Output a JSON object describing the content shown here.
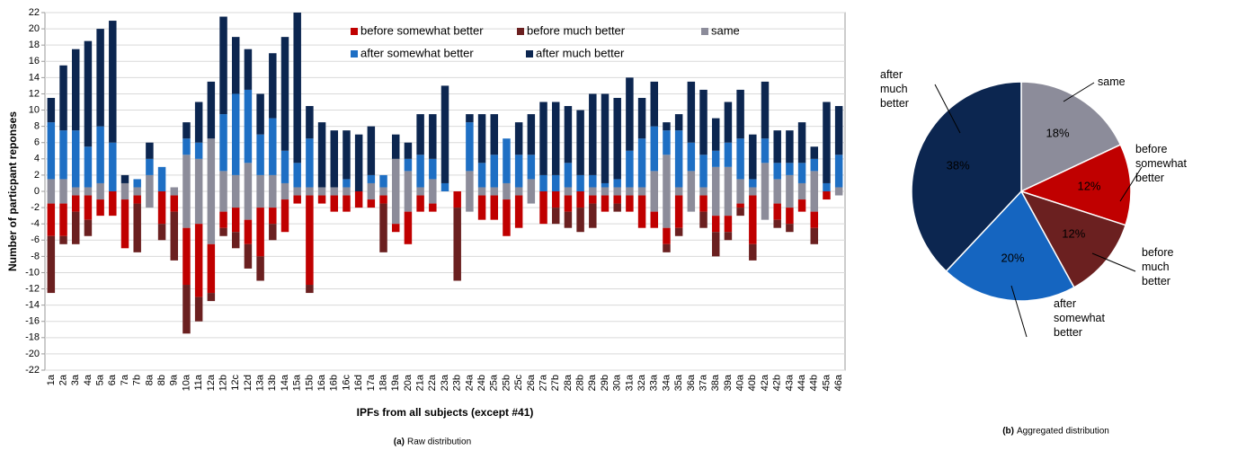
{
  "chart_data": [
    {
      "type": "diverging-bar",
      "y_label": "Number of particpant reponses",
      "x_label": "IPFs from all subjects (except #41)",
      "caption_label": "(a)",
      "caption": "Raw distribution",
      "categories": [
        "1a",
        "2a",
        "3a",
        "4a",
        "5a",
        "6a",
        "7a",
        "7b",
        "8a",
        "8b",
        "9a",
        "10a",
        "11a",
        "12a",
        "12b",
        "12c",
        "12d",
        "13a",
        "13b",
        "14a",
        "15a",
        "15b",
        "16a",
        "16b",
        "16c",
        "16d",
        "17a",
        "18a",
        "19a",
        "20a",
        "21a",
        "22a",
        "23a",
        "23b",
        "24a",
        "24b",
        "25a",
        "25b",
        "25c",
        "26a",
        "27a",
        "27b",
        "28a",
        "28b",
        "29a",
        "29b",
        "30a",
        "31a",
        "32a",
        "33a",
        "34a",
        "35a",
        "36a",
        "37a",
        "38a",
        "39a",
        "40a",
        "40b",
        "42a",
        "42b",
        "43a",
        "44a",
        "44b",
        "45a",
        "46a"
      ],
      "series": [
        {
          "name": "before somewhat better",
          "color": "#c00000",
          "side": "below",
          "values": [
            4,
            4,
            2,
            3,
            2,
            3,
            6,
            1,
            0,
            4,
            2,
            7,
            9,
            6,
            2,
            3,
            3,
            6,
            2,
            4,
            1,
            11,
            1,
            2,
            2,
            2,
            1,
            1,
            1,
            4,
            2,
            1,
            0,
            2,
            0,
            3,
            3,
            4.5,
            4,
            0,
            4,
            2,
            2,
            2,
            1,
            2,
            1,
            2,
            4,
            2,
            2,
            4,
            0,
            2,
            2,
            2,
            0.5,
            6,
            0,
            2,
            2,
            1.5,
            2,
            1,
            0
          ]
        },
        {
          "name": "before much better",
          "color": "#6b2020",
          "side": "below",
          "values": [
            7,
            1,
            4,
            2,
            0,
            0,
            0,
            6,
            0,
            2,
            6,
            6,
            3,
            1,
            1,
            2,
            3,
            3,
            2,
            0,
            0,
            1,
            0,
            0,
            0,
            0,
            0,
            6,
            0,
            0,
            0,
            0,
            0,
            9,
            0,
            0,
            0,
            0,
            0,
            0,
            0,
            2,
            2,
            3,
            3,
            0,
            1,
            0,
            0,
            0,
            1,
            1,
            0,
            2,
            3,
            1,
            1,
            2,
            0,
            1,
            1,
            0,
            2,
            0,
            0
          ]
        },
        {
          "name": "same",
          "color": "#8c8c9a",
          "side": "both",
          "values": [
            3,
            3,
            1,
            1,
            2,
            0,
            2,
            1,
            4,
            0,
            1,
            9,
            8,
            13,
            5,
            4,
            7,
            4,
            4,
            2,
            1,
            1,
            1,
            1,
            1,
            0,
            2,
            1,
            8,
            5,
            1,
            3,
            0,
            0,
            5,
            1,
            1,
            2,
            1,
            3,
            0,
            0,
            1,
            0,
            1,
            1,
            1,
            1,
            1,
            5,
            9,
            1,
            5,
            1,
            6,
            6,
            3,
            1,
            7,
            3,
            4,
            2,
            5,
            0,
            1
          ]
        },
        {
          "name": "after somewhat better",
          "color": "#1e6fc4",
          "side": "above",
          "values": [
            7,
            6,
            7,
            5,
            7,
            6,
            0,
            1,
            2,
            3,
            0,
            2,
            2,
            0,
            7,
            10,
            9,
            5,
            7,
            4,
            3,
            6,
            0,
            0,
            1,
            0,
            1,
            1.5,
            0,
            1.5,
            4,
            2.5,
            1,
            0,
            6,
            3,
            4,
            5.5,
            4,
            3,
            2,
            2,
            3,
            2,
            1.5,
            0.5,
            1,
            4.5,
            6,
            5.5,
            3,
            7,
            3.5,
            4,
            2,
            3,
            5,
            1,
            3,
            2,
            1.5,
            2.5,
            1.5,
            1,
            4
          ]
        },
        {
          "name": "after much better",
          "color": "#0c2650",
          "side": "above",
          "values": [
            3,
            8,
            10,
            13,
            12,
            15,
            1,
            0,
            2,
            0,
            0,
            2,
            5,
            7,
            12,
            7,
            5,
            5,
            8,
            14,
            19,
            4,
            8,
            7,
            6,
            7,
            6,
            0,
            3,
            2,
            5,
            5.5,
            12,
            0,
            1,
            6,
            5,
            0,
            4,
            5,
            9,
            9,
            7,
            8,
            10,
            11,
            10,
            9,
            5,
            5.5,
            1,
            2,
            7.5,
            8,
            4,
            5,
            6,
            5.5,
            7,
            4,
            4,
            5,
            1.5,
            10,
            6
          ]
        }
      ],
      "ylim": [
        -22,
        22
      ],
      "yticks": [
        -22,
        -20,
        -18,
        -16,
        -14,
        -12,
        -10,
        -8,
        -6,
        -4,
        -2,
        0,
        2,
        4,
        6,
        8,
        10,
        12,
        14,
        16,
        18,
        20,
        22
      ],
      "grid": true
    },
    {
      "type": "pie",
      "caption_label": "(b)",
      "caption": "Aggregated distribution",
      "categories": [
        "same",
        "before somewhat better",
        "before much better",
        "after somewhat better",
        "after much better"
      ],
      "values": [
        18,
        12,
        12,
        20,
        38
      ],
      "value_labels": [
        "18%",
        "12%",
        "12%",
        "20%",
        "38%"
      ],
      "colors": [
        "#8c8c9a",
        "#c00000",
        "#6b2020",
        "#1565c0",
        "#0c2650"
      ]
    }
  ]
}
